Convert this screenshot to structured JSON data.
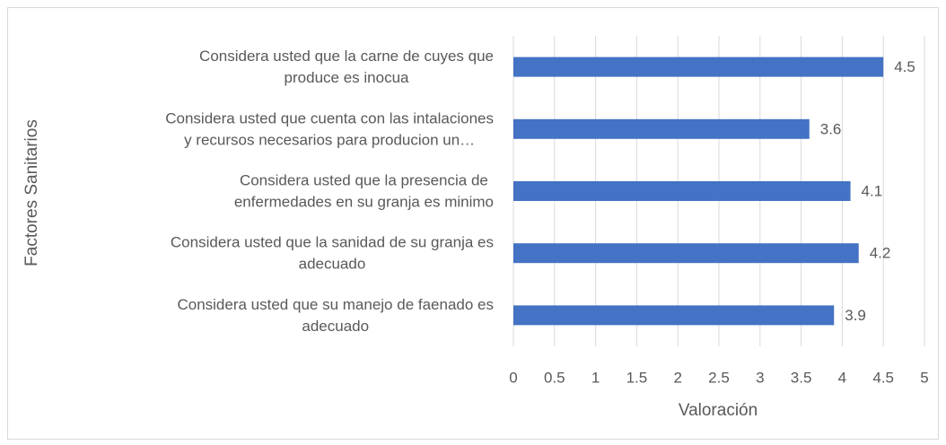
{
  "chart_data": {
    "type": "bar",
    "orientation": "horizontal",
    "x_label": "Valoración",
    "y_label": "Factores Sanitarios",
    "categories": [
      [
        "Considera usted que la carne de cuyes que",
        "produce es inocua"
      ],
      [
        "Considera usted que cuenta con las intalaciones",
        "y recursos necesarios para producion un…"
      ],
      [
        "Considera usted que la presencia de",
        "enfermedades en su granja es minimo"
      ],
      [
        "Considera usted que la sanidad de su granja es",
        "adecuado"
      ],
      [
        "Considera usted que su manejo de faenado es",
        "adecuado"
      ]
    ],
    "values": [
      4.5,
      3.6,
      4.1,
      4.2,
      3.9
    ],
    "color": "#4472c4",
    "xlim": [
      0,
      5
    ],
    "xticks": [
      0,
      0.5,
      1,
      1.5,
      2,
      2.5,
      3,
      3.5,
      4,
      4.5,
      5
    ],
    "grid": true
  }
}
